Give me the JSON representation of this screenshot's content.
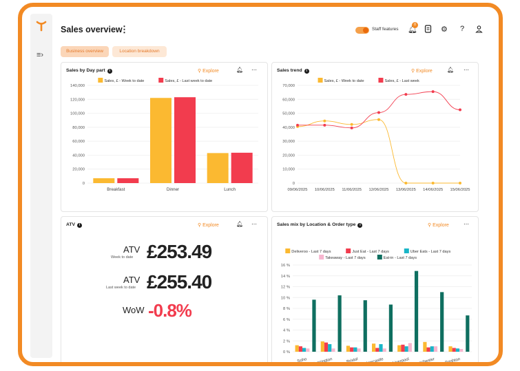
{
  "app": {
    "title": "Sales overview"
  },
  "header": {
    "staff_label": "Staff features",
    "notifications_count": "0"
  },
  "tabs": [
    {
      "label": "Business overview",
      "active": true
    },
    {
      "label": "Location breakdown",
      "active": false
    }
  ],
  "colors": {
    "accent": "#f28a24",
    "orange": "#fbb931",
    "red": "#f23c4e",
    "cyan": "#19b5c7",
    "pink": "#f7b6cf",
    "teal": "#0f6f60"
  },
  "cards": {
    "daypart": {
      "title": "Sales by Day part",
      "explore": "Explore"
    },
    "trend": {
      "title": "Sales trend",
      "explore": "Explore"
    },
    "atv": {
      "title": "ATV",
      "explore": "Explore"
    },
    "mix": {
      "title": "Sales mix by Location & Order type",
      "explore": "Explore"
    }
  },
  "atv": {
    "week_label": "ATV",
    "week_sub": "Week to date",
    "week_value": "£253.49",
    "last_label": "ATV",
    "last_sub": "Last week to date",
    "last_value": "£255.40",
    "wow_label": "WoW",
    "wow_value": "-0.8%"
  },
  "chart_data": [
    {
      "type": "bar",
      "title": "Sales by Day part",
      "categories": [
        "Breakfast",
        "Dinner",
        "Lunch"
      ],
      "series": [
        {
          "name": "Sales, £ - Week to date",
          "values": [
            7000,
            122000,
            43000
          ],
          "color": "#fbb931"
        },
        {
          "name": "Sales, £ - Last week to date",
          "values": [
            7000,
            123000,
            43500
          ],
          "color": "#f23c4e"
        }
      ],
      "ylim": [
        0,
        140000
      ],
      "yticks": [
        "0",
        "20,000",
        "40,000",
        "60,000",
        "80,000",
        "100,000",
        "120,000",
        "140,000"
      ],
      "grid": true,
      "legend": "top"
    },
    {
      "type": "line",
      "title": "Sales trend",
      "x": [
        "09/06/2025",
        "10/06/2025",
        "11/06/2025",
        "12/06/2025",
        "13/06/2025",
        "14/06/2025",
        "15/06/2025"
      ],
      "series": [
        {
          "name": "Sales, £ - Week to date",
          "values": [
            40500,
            44500,
            42000,
            45500,
            0,
            0,
            0
          ],
          "color": "#fbb931"
        },
        {
          "name": "Sales, £ - Last week",
          "values": [
            41500,
            41500,
            39500,
            50500,
            63500,
            65500,
            52500
          ],
          "color": "#f23c4e"
        }
      ],
      "ylim": [
        0,
        70000
      ],
      "yticks": [
        "0",
        "10,000",
        "20,000",
        "30,000",
        "40,000",
        "50,000",
        "60,000",
        "70,000"
      ],
      "grid": true,
      "legend": "top"
    },
    {
      "type": "bar",
      "title": "Sales mix by Location & Order type",
      "categories": [
        "Soho",
        "Kensington",
        "Bristol",
        "Newcastle",
        "Liverpool",
        "Manchester",
        "Brighton"
      ],
      "series": [
        {
          "name": "Deliveroo - Last 7 days",
          "values": [
            1.2,
            1.9,
            1.1,
            1.5,
            1.2,
            1.8,
            1.0
          ],
          "color": "#fbb931"
        },
        {
          "name": "Just Eat - Last 7 days",
          "values": [
            1.0,
            1.7,
            0.8,
            0.7,
            1.3,
            0.8,
            0.7
          ],
          "color": "#f23c4e"
        },
        {
          "name": "Uber Eats - Last 7 days",
          "values": [
            0.7,
            1.4,
            0.8,
            1.4,
            1.0,
            1.0,
            0.6
          ],
          "color": "#19b5c7"
        },
        {
          "name": "Takeaway - Last 7 days",
          "values": [
            0.6,
            0.6,
            0.6,
            0.6,
            1.6,
            1.0,
            0.5
          ],
          "color": "#f7b6cf"
        },
        {
          "name": "Eat-in - Last 7 days",
          "values": [
            9.6,
            10.4,
            9.5,
            8.7,
            14.9,
            11.0,
            6.7
          ],
          "color": "#0f6f60"
        }
      ],
      "ylim": [
        0,
        16
      ],
      "yticks": [
        "0 %",
        "2 %",
        "4 %",
        "6 %",
        "8 %",
        "10 %",
        "12 %",
        "14 %",
        "16 %"
      ],
      "grid": true,
      "legend": "top"
    }
  ]
}
